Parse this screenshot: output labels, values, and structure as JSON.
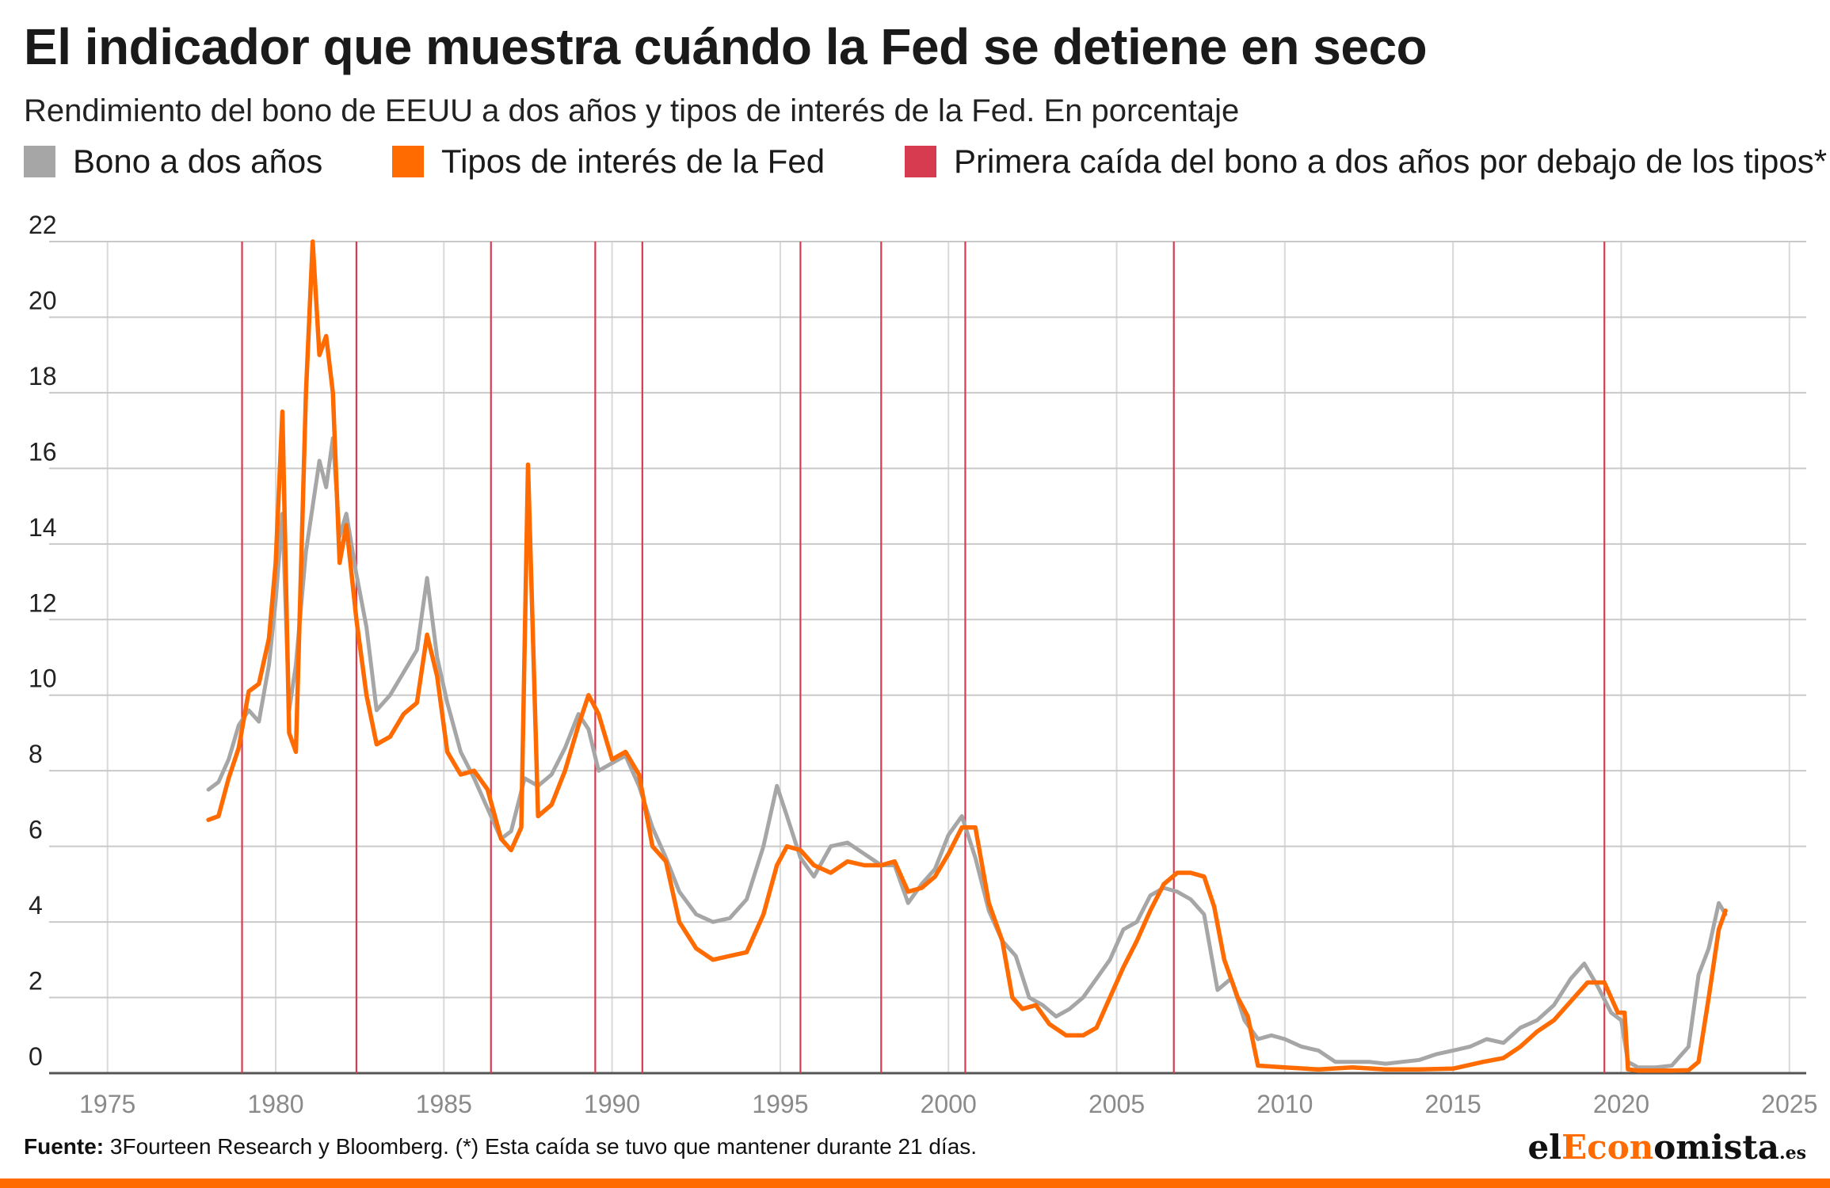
{
  "header": {
    "title": "El indicador que muestra cuándo la Fed se detiene en seco",
    "subtitle": "Rendimiento del bono de EEUU a dos años y tipos de interés de la Fed. En porcentaje"
  },
  "legend": [
    {
      "label": "Bono a dos años",
      "color": "#a6a6a6"
    },
    {
      "label": "Tipos de interés de la Fed",
      "color": "#ff6b00"
    },
    {
      "label": "Primera caída del bono a dos años por debajo de los tipos*",
      "color": "#d63b50"
    }
  ],
  "footer": {
    "source_label": "Fuente:",
    "source_text": "3Fourteen Research y Bloomberg. (*) Esta caída se tuvo que mantener durante 21 días."
  },
  "logo": {
    "prefix": "el",
    "accent": "Econ",
    "rest": "omista",
    "tld": ".es"
  },
  "chart_data": {
    "type": "line",
    "xlim": [
      1973.5,
      2025.5
    ],
    "ylim": [
      0,
      22
    ],
    "x_ticks": [
      1975,
      1980,
      1985,
      1990,
      1995,
      2000,
      2005,
      2010,
      2015,
      2020,
      2025
    ],
    "y_ticks": [
      0,
      2,
      4,
      6,
      8,
      10,
      12,
      14,
      16,
      18,
      20,
      22
    ],
    "grid": {
      "horizontal": true,
      "vertical": true
    },
    "vlines": [
      1979.0,
      1982.4,
      1986.4,
      1989.5,
      1990.9,
      1995.6,
      1998.0,
      2000.5,
      2006.7,
      2019.5
    ],
    "series": [
      {
        "name": "Bono a dos años",
        "color": "#a6a6a6",
        "x": [
          1978.0,
          1978.3,
          1978.6,
          1978.9,
          1979.2,
          1979.5,
          1979.8,
          1980.0,
          1980.2,
          1980.4,
          1980.6,
          1980.9,
          1981.1,
          1981.3,
          1981.5,
          1981.7,
          1981.9,
          1982.1,
          1982.4,
          1982.7,
          1983.0,
          1983.4,
          1983.8,
          1984.2,
          1984.5,
          1984.8,
          1985.1,
          1985.5,
          1985.9,
          1986.3,
          1986.7,
          1987.0,
          1987.4,
          1987.8,
          1988.2,
          1988.6,
          1989.0,
          1989.3,
          1989.6,
          1990.0,
          1990.4,
          1990.8,
          1991.2,
          1991.6,
          1992.0,
          1992.5,
          1993.0,
          1993.5,
          1994.0,
          1994.5,
          1994.9,
          1995.2,
          1995.6,
          1996.0,
          1996.5,
          1997.0,
          1997.5,
          1998.0,
          1998.4,
          1998.8,
          1999.2,
          1999.6,
          2000.0,
          2000.4,
          2000.8,
          2001.2,
          2001.6,
          2002.0,
          2002.4,
          2002.8,
          2003.2,
          2003.6,
          2004.0,
          2004.4,
          2004.8,
          2005.2,
          2005.6,
          2006.0,
          2006.4,
          2006.8,
          2007.2,
          2007.6,
          2008.0,
          2008.4,
          2008.8,
          2009.2,
          2009.6,
          2010.0,
          2010.5,
          2011.0,
          2011.5,
          2012.0,
          2012.5,
          2013.0,
          2013.5,
          2014.0,
          2014.5,
          2015.0,
          2015.5,
          2016.0,
          2016.5,
          2017.0,
          2017.5,
          2018.0,
          2018.5,
          2018.9,
          2019.3,
          2019.7,
          2020.0,
          2020.2,
          2020.5,
          2021.0,
          2021.5,
          2022.0,
          2022.3,
          2022.6,
          2022.9,
          2023.1
        ],
        "values": [
          7.5,
          7.7,
          8.3,
          9.2,
          9.6,
          9.3,
          10.8,
          12.5,
          14.8,
          9.6,
          10.8,
          13.8,
          15.0,
          16.2,
          15.5,
          16.8,
          14.2,
          14.8,
          13.2,
          11.8,
          9.6,
          10.0,
          10.6,
          11.2,
          13.1,
          11.0,
          9.8,
          8.5,
          7.8,
          7.0,
          6.2,
          6.4,
          7.8,
          7.6,
          7.9,
          8.6,
          9.5,
          9.1,
          8.0,
          8.2,
          8.4,
          7.6,
          6.5,
          5.7,
          4.8,
          4.2,
          4.0,
          4.1,
          4.6,
          6.0,
          7.6,
          6.8,
          5.7,
          5.2,
          6.0,
          6.1,
          5.8,
          5.5,
          5.5,
          4.5,
          5.0,
          5.4,
          6.3,
          6.8,
          5.7,
          4.3,
          3.5,
          3.1,
          2.0,
          1.8,
          1.5,
          1.7,
          2.0,
          2.5,
          3.0,
          3.8,
          4.0,
          4.7,
          4.9,
          4.8,
          4.6,
          4.2,
          2.2,
          2.5,
          1.4,
          0.9,
          1.0,
          0.9,
          0.7,
          0.6,
          0.3,
          0.3,
          0.3,
          0.25,
          0.3,
          0.35,
          0.5,
          0.6,
          0.7,
          0.9,
          0.8,
          1.2,
          1.4,
          1.8,
          2.5,
          2.9,
          2.3,
          1.6,
          1.4,
          0.3,
          0.15,
          0.15,
          0.2,
          0.7,
          2.6,
          3.3,
          4.5,
          4.2
        ]
      },
      {
        "name": "Tipos de interés de la Fed",
        "color": "#ff6b00",
        "x": [
          1978.0,
          1978.3,
          1978.6,
          1978.9,
          1979.2,
          1979.5,
          1979.8,
          1980.0,
          1980.2,
          1980.4,
          1980.6,
          1980.9,
          1981.1,
          1981.3,
          1981.5,
          1981.7,
          1981.9,
          1982.1,
          1982.4,
          1982.7,
          1983.0,
          1983.4,
          1983.8,
          1984.2,
          1984.5,
          1984.8,
          1985.1,
          1985.5,
          1985.9,
          1986.3,
          1986.7,
          1987.0,
          1987.3,
          1987.5,
          1987.8,
          1988.2,
          1988.6,
          1989.0,
          1989.3,
          1989.6,
          1990.0,
          1990.4,
          1990.8,
          1991.2,
          1991.6,
          1992.0,
          1992.5,
          1993.0,
          1993.5,
          1994.0,
          1994.5,
          1994.9,
          1995.2,
          1995.6,
          1996.0,
          1996.5,
          1997.0,
          1997.5,
          1998.0,
          1998.4,
          1998.8,
          1999.2,
          1999.6,
          2000.0,
          2000.4,
          2000.8,
          2001.2,
          2001.6,
          2001.9,
          2002.2,
          2002.6,
          2003.0,
          2003.5,
          2004.0,
          2004.4,
          2004.8,
          2005.2,
          2005.6,
          2006.0,
          2006.4,
          2006.8,
          2007.2,
          2007.6,
          2007.9,
          2008.2,
          2008.6,
          2008.9,
          2009.2,
          2010.0,
          2011.0,
          2012.0,
          2013.0,
          2014.0,
          2015.0,
          2015.9,
          2016.5,
          2017.0,
          2017.5,
          2018.0,
          2018.5,
          2019.0,
          2019.5,
          2019.9,
          2020.1,
          2020.2,
          2020.5,
          2021.0,
          2021.5,
          2022.0,
          2022.3,
          2022.6,
          2022.9,
          2023.1
        ],
        "values": [
          6.7,
          6.8,
          7.8,
          8.6,
          10.1,
          10.3,
          11.5,
          13.5,
          17.5,
          9.0,
          8.5,
          18.0,
          22.0,
          19.0,
          19.5,
          18.0,
          13.5,
          14.5,
          12.0,
          10.0,
          8.7,
          8.9,
          9.5,
          9.8,
          11.6,
          10.5,
          8.5,
          7.9,
          8.0,
          7.5,
          6.2,
          5.9,
          6.5,
          16.1,
          6.8,
          7.1,
          8.0,
          9.2,
          10.0,
          9.5,
          8.3,
          8.5,
          7.9,
          6.0,
          5.6,
          4.0,
          3.3,
          3.0,
          3.1,
          3.2,
          4.2,
          5.5,
          6.0,
          5.9,
          5.5,
          5.3,
          5.6,
          5.5,
          5.5,
          5.6,
          4.8,
          4.9,
          5.2,
          5.8,
          6.5,
          6.5,
          4.5,
          3.5,
          2.0,
          1.7,
          1.8,
          1.3,
          1.0,
          1.0,
          1.2,
          2.0,
          2.8,
          3.5,
          4.3,
          5.0,
          5.3,
          5.3,
          5.2,
          4.4,
          3.0,
          2.0,
          1.5,
          0.2,
          0.15,
          0.1,
          0.15,
          0.1,
          0.1,
          0.12,
          0.3,
          0.4,
          0.7,
          1.1,
          1.4,
          1.9,
          2.4,
          2.4,
          1.6,
          1.6,
          0.1,
          0.07,
          0.07,
          0.07,
          0.08,
          0.3,
          2.0,
          3.8,
          4.3
        ]
      }
    ]
  }
}
